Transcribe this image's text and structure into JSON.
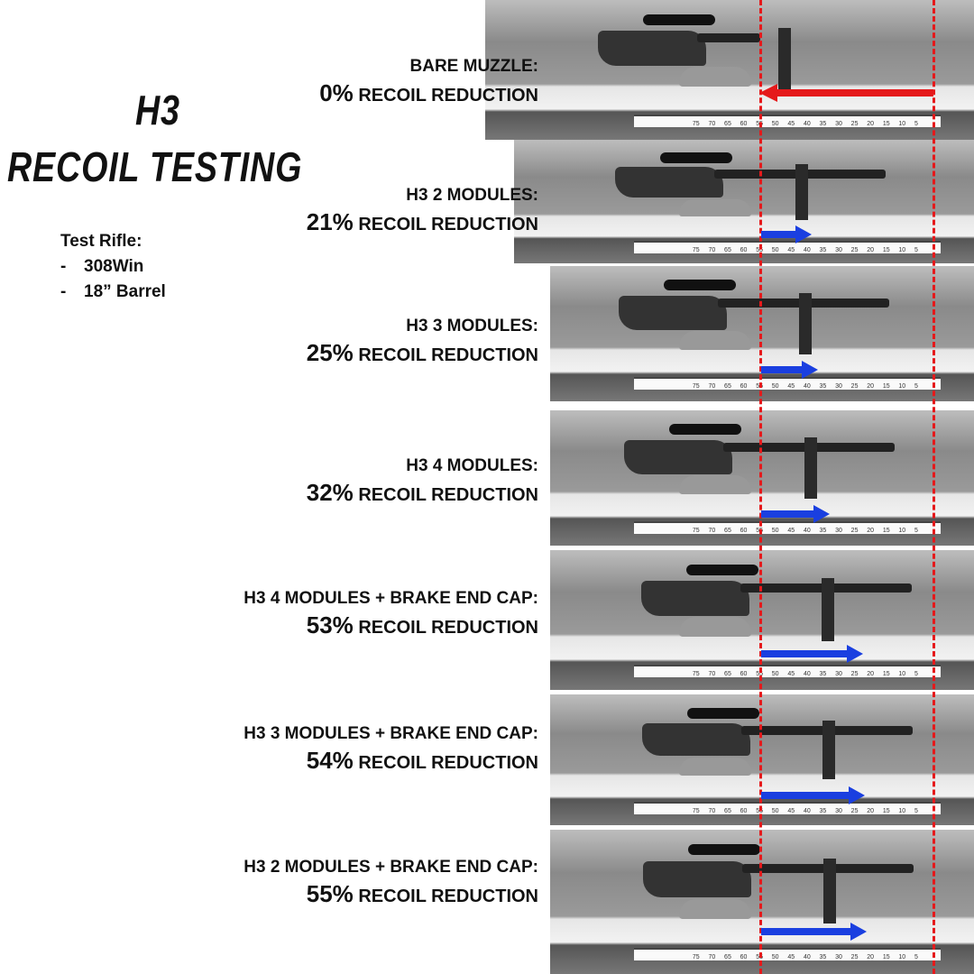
{
  "title": {
    "line1": "H3",
    "line2": "RECOIL TESTING"
  },
  "specs": {
    "heading": "Test Rifle:",
    "items": [
      "308Win",
      "18” Barrel"
    ],
    "bullet": "-"
  },
  "colors": {
    "baseline": "#e5191b",
    "reduction_arrow": "#1a3fe0",
    "bare_arrow": "#e5191b"
  },
  "scale_ticks": [
    "75",
    "70",
    "65",
    "60",
    "55",
    "50",
    "45",
    "40",
    "35",
    "30",
    "25",
    "20",
    "15",
    "10",
    "5"
  ],
  "tests": [
    {
      "config": "BARE MUZZLE:",
      "percent": "0%",
      "suffix": "RECOIL REDUCTION",
      "reduction": 0
    },
    {
      "config": "H3 2 MODULES:",
      "percent": "21%",
      "suffix": "RECOIL REDUCTION",
      "reduction": 21
    },
    {
      "config": "H3 3 MODULES:",
      "percent": "25%",
      "suffix": "RECOIL REDUCTION",
      "reduction": 25
    },
    {
      "config": "H3 4 MODULES:",
      "percent": "32%",
      "suffix": "RECOIL REDUCTION",
      "reduction": 32
    },
    {
      "config": "H3 4 MODULES + BRAKE END CAP:",
      "percent": "53%",
      "suffix": "RECOIL REDUCTION",
      "reduction": 53
    },
    {
      "config": "H3 3 MODULES + BRAKE END CAP:",
      "percent": "54%",
      "suffix": "RECOIL REDUCTION",
      "reduction": 54
    },
    {
      "config": "H3 2 MODULES + BRAKE END CAP:",
      "percent": "55%",
      "suffix": "RECOIL REDUCTION",
      "reduction": 55
    }
  ]
}
